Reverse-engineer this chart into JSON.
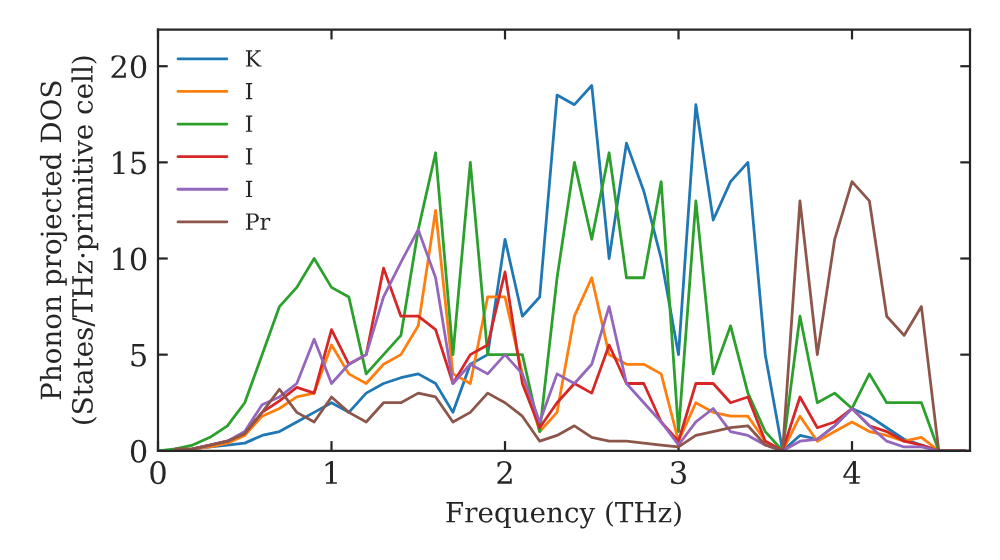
{
  "chart_data": {
    "type": "line",
    "xlabel": "Frequency (THz)",
    "ylabel": "Phonon projected DOS\n(States/THz·primitive cell)",
    "x": [
      0,
      0.1,
      0.2,
      0.3,
      0.4,
      0.5,
      0.6,
      0.7,
      0.8,
      0.9,
      1.0,
      1.1,
      1.2,
      1.3,
      1.4,
      1.5,
      1.6,
      1.7,
      1.8,
      1.9,
      2.0,
      2.1,
      2.2,
      2.3,
      2.4,
      2.5,
      2.6,
      2.7,
      2.8,
      2.9,
      3.0,
      3.1,
      3.2,
      3.3,
      3.4,
      3.5,
      3.6,
      3.7,
      3.8,
      3.9,
      4.0,
      4.1,
      4.2,
      4.3,
      4.4,
      4.5,
      4.6,
      4.65
    ],
    "series": [
      {
        "name": "K",
        "color": "#1f77b4",
        "values": [
          null,
          null,
          0.1,
          0.2,
          0.3,
          0.4,
          0.8,
          1.0,
          1.5,
          2.0,
          2.5,
          2.0,
          3.0,
          3.5,
          3.8,
          4.0,
          3.5,
          2.0,
          4.5,
          5.0,
          11.0,
          7,
          8,
          18.5,
          18,
          19,
          10,
          16,
          13.5,
          10,
          5,
          18,
          12,
          14,
          15,
          5,
          0,
          0.8,
          0.6,
          1.3,
          2.2,
          1.8,
          1.2,
          0.6,
          0.3,
          0,
          null,
          null
        ]
      },
      {
        "name": "I",
        "color": "#ff7f0e",
        "values": [
          null,
          null,
          0.1,
          0.2,
          0.4,
          0.8,
          1.8,
          2.2,
          2.8,
          3.0,
          5.5,
          4.0,
          3.5,
          4.5,
          5.0,
          6.5,
          12.5,
          4,
          3.5,
          8,
          8,
          4,
          1.0,
          2,
          7,
          9,
          5,
          4.5,
          4.5,
          4,
          0.5,
          2.5,
          2.0,
          1.8,
          1.8,
          0.5,
          0,
          1.8,
          0.5,
          1.0,
          1.5,
          1.0,
          0.8,
          0.5,
          0.7,
          0,
          0,
          0
        ]
      },
      {
        "name": "I",
        "color": "#2ca02c",
        "values": [
          0,
          0.1,
          0.3,
          0.7,
          1.3,
          2.5,
          5,
          7.5,
          8.5,
          10,
          8.5,
          8,
          4,
          5,
          6,
          11.5,
          15.5,
          5,
          15,
          5,
          5,
          5,
          1,
          9,
          15,
          11,
          15.5,
          9,
          9,
          14,
          1,
          13,
          4,
          6.5,
          3,
          1,
          0,
          7,
          2.5,
          3.0,
          2.2,
          4,
          2.5,
          2.5,
          2.5,
          0,
          0,
          0
        ]
      },
      {
        "name": "I",
        "color": "#d62728",
        "values": [
          null,
          null,
          0.1,
          0.3,
          0.5,
          0.9,
          2,
          2.6,
          3.3,
          3.0,
          6.3,
          4.5,
          5,
          9.5,
          7,
          7,
          6.3,
          3.5,
          5,
          5.5,
          9.3,
          3.5,
          1.2,
          2.5,
          3.5,
          3.0,
          5.5,
          3.5,
          3.5,
          1.5,
          0.5,
          3.5,
          3.5,
          2.5,
          2.8,
          0.5,
          0,
          2.8,
          1.2,
          1.5,
          2.2,
          1.3,
          1.0,
          0.5,
          0.3,
          0,
          0,
          0
        ]
      },
      {
        "name": "I",
        "color": "#9467bd",
        "values": [
          null,
          null,
          0.1,
          0.3,
          0.5,
          1.0,
          2.4,
          2.8,
          3.5,
          5.8,
          3.5,
          4.5,
          5,
          8,
          9.8,
          11.5,
          9,
          3.5,
          4.5,
          4,
          5,
          4,
          1.5,
          4,
          3.5,
          4.5,
          7.5,
          3.5,
          2.5,
          1.5,
          0.3,
          1.5,
          2.2,
          1.0,
          0.8,
          0.3,
          0,
          0.5,
          0.6,
          1.3,
          2.2,
          1.3,
          0.5,
          0.2,
          0.2,
          0,
          0,
          0
        ]
      },
      {
        "name": "Pr",
        "color": "#8c564b",
        "values": [
          null,
          0.1,
          0.1,
          0.3,
          0.5,
          0.9,
          2.0,
          3.2,
          2.0,
          1.5,
          2.8,
          2.0,
          1.5,
          2.5,
          2.5,
          3.0,
          2.8,
          1.5,
          2.0,
          3.0,
          2.5,
          1.8,
          0.5,
          0.8,
          1.3,
          0.7,
          0.5,
          0.5,
          0.4,
          0.3,
          0.2,
          0.8,
          1.0,
          1.2,
          1.3,
          0.3,
          0,
          13,
          5,
          11,
          14,
          13,
          7,
          6,
          7.5,
          0,
          0,
          0
        ]
      }
    ],
    "xlim": [
      0,
      4.68
    ],
    "ylim": [
      0,
      21.9
    ],
    "xticks": [
      0,
      1,
      2,
      3,
      4
    ],
    "yticks": [
      0,
      5,
      10,
      15,
      20
    ],
    "legend": "top left",
    "grid": false
  }
}
